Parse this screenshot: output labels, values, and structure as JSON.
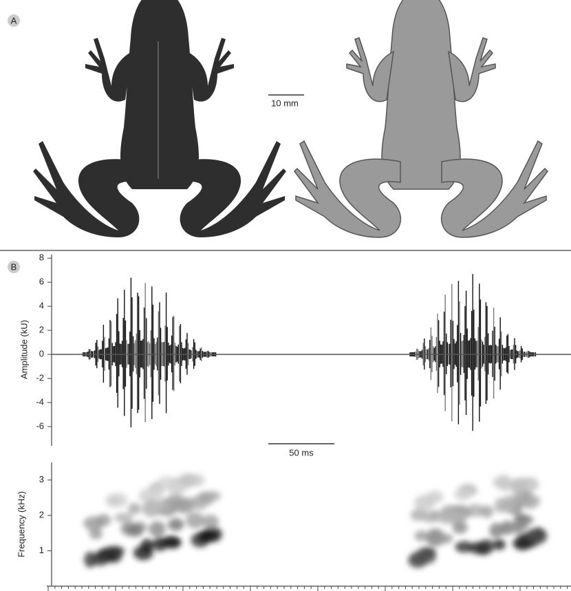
{
  "panels": [
    {
      "label": "A",
      "scale_bar": "10 mm"
    },
    {
      "label": "B",
      "scale_bar": "50 ms",
      "amplitude": {
        "axis_label": "Amplitude (kU)",
        "ylim": [
          -7.6,
          8.3
        ],
        "yticks": [
          8,
          6,
          4,
          2,
          0,
          -2,
          -4,
          -6
        ]
      },
      "frequency": {
        "axis_label": "Frequency (kHz)",
        "ylim": [
          0,
          3.5
        ],
        "yticks": [
          1,
          2,
          3
        ]
      }
    }
  ]
}
